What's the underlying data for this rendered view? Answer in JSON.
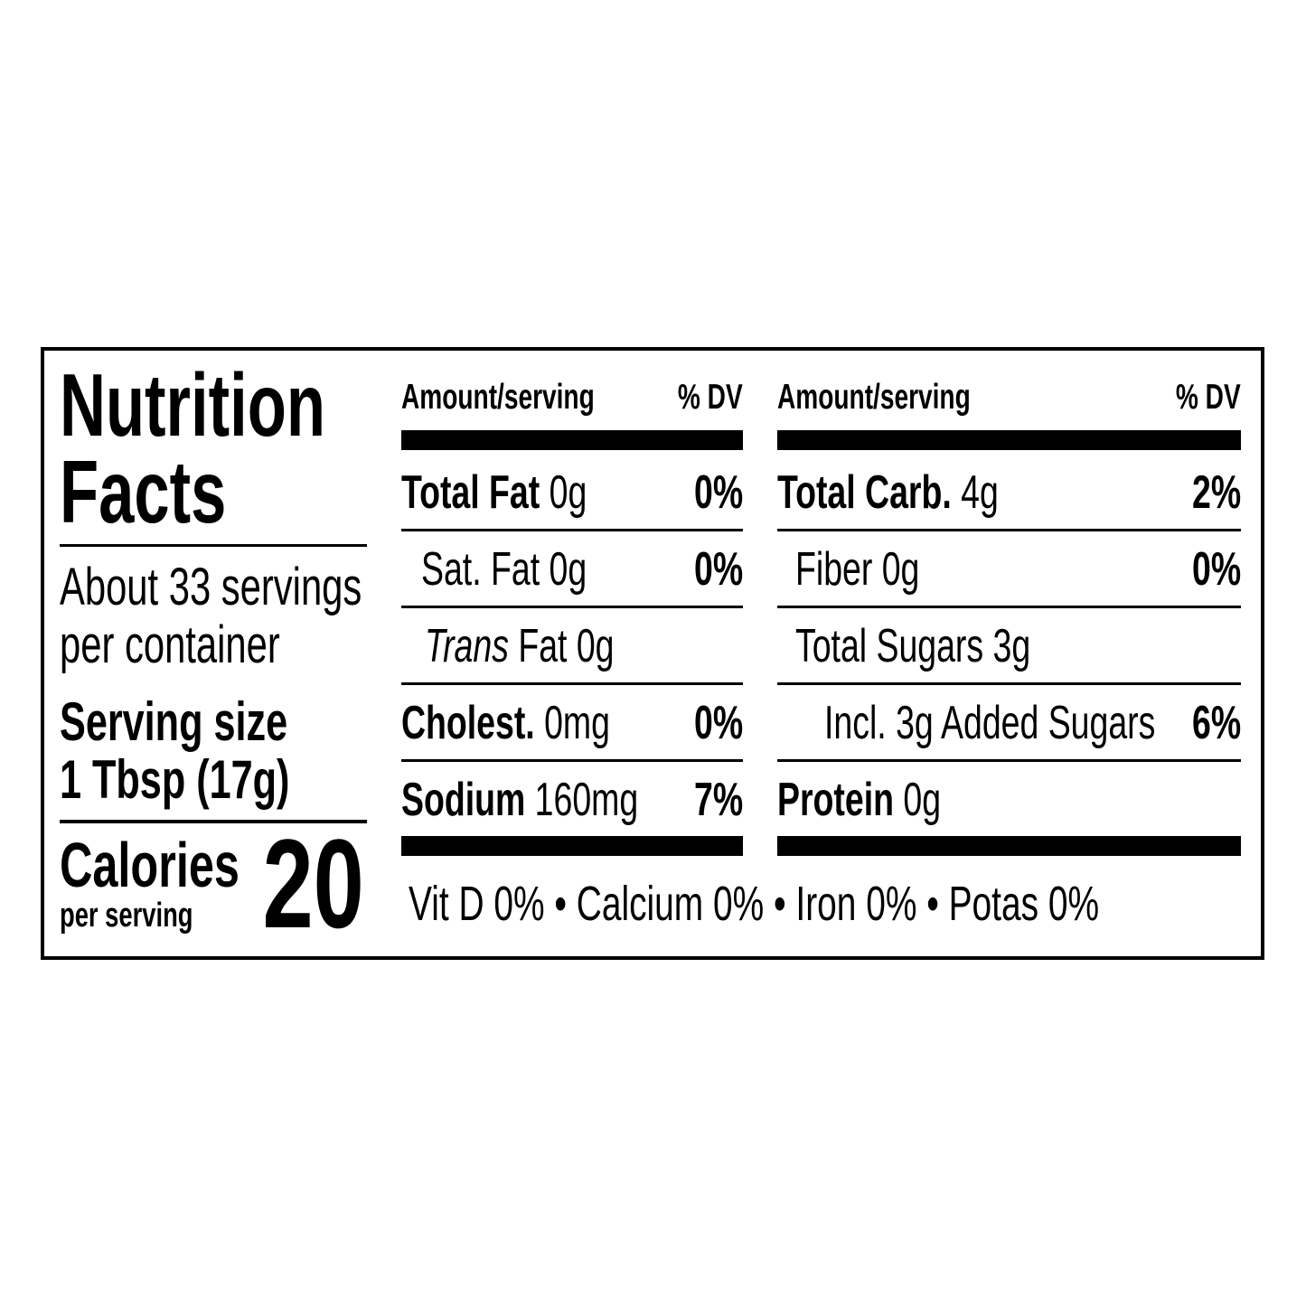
{
  "title_line1": "Nutrition",
  "title_line2": "Facts",
  "servings_line1": "About 33 servings",
  "servings_line2": "per container",
  "serving_size_label": "Serving size",
  "serving_size_value": "1 Tbsp (17g)",
  "calories_label": "Calories",
  "calories_sub": "per serving",
  "calories_value": "20",
  "left_table": {
    "header_amount": "Amount/serving",
    "header_dv": "% DV",
    "rows": [
      {
        "name": "Total Fat",
        "amount": " 0g",
        "dv": "0%",
        "bold": true
      },
      {
        "name": "Sat. Fat",
        "amount": " 0g",
        "dv": "0%",
        "bold": false
      },
      {
        "name": "Trans",
        "amount": " Fat 0g",
        "dv": "",
        "bold": false
      },
      {
        "name": "Cholest.",
        "amount": " 0mg",
        "dv": "0%",
        "bold": true
      },
      {
        "name": "Sodium",
        "amount": " 160mg",
        "dv": "7%",
        "bold": true
      }
    ]
  },
  "right_table": {
    "header_amount": "Amount/serving",
    "header_dv": "% DV",
    "rows": [
      {
        "name": "Total Carb.",
        "amount": " 4g",
        "dv": "2%",
        "bold": true
      },
      {
        "name": "Fiber",
        "amount": " 0g",
        "dv": "0%",
        "bold": false
      },
      {
        "name": "Total Sugars",
        "amount": " 3g",
        "dv": "",
        "bold": false
      },
      {
        "name": "Incl. 3g Added Sugars",
        "amount": "",
        "dv": "6%",
        "bold": false
      },
      {
        "name": "Protein",
        "amount": " 0g",
        "dv": "",
        "bold": true
      }
    ]
  },
  "footer": "Vit  D 0% • Calcium 0% • Iron 0% • Potas  0%"
}
